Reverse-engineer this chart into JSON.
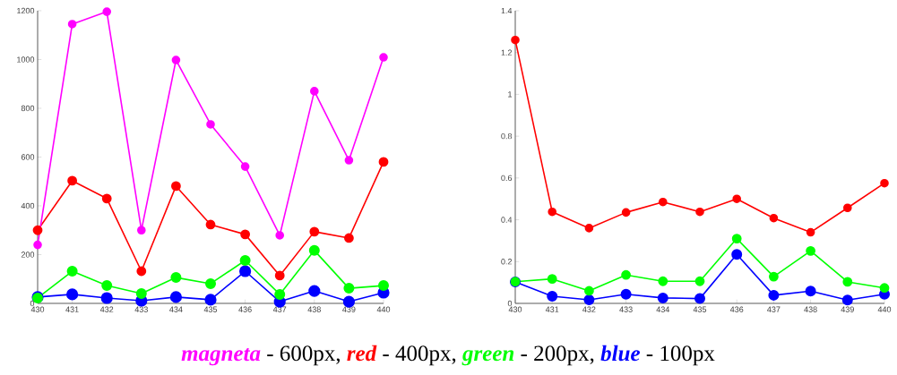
{
  "chart_data": [
    {
      "type": "line",
      "marker": "circle",
      "x": [
        430,
        431,
        432,
        433,
        434,
        435,
        436,
        437,
        438,
        439,
        440
      ],
      "xlim": [
        430,
        440
      ],
      "xticks": [
        430,
        431,
        432,
        433,
        434,
        435,
        436,
        437,
        438,
        439,
        440
      ],
      "ylim": [
        0,
        1200
      ],
      "yticks": [
        0,
        200,
        400,
        600,
        800,
        1000,
        1200
      ],
      "series": [
        {
          "name": "magneta",
          "color": "#ff00ff",
          "values": [
            240,
            1145,
            1196,
            300,
            998,
            734,
            561,
            279,
            870,
            587,
            1009
          ]
        },
        {
          "name": "red",
          "color": "#ff0000",
          "values": [
            300,
            503,
            430,
            132,
            481,
            323,
            283,
            114,
            294,
            268,
            580
          ]
        },
        {
          "name": "green",
          "color": "#00ff00",
          "values": [
            22,
            132,
            73,
            40,
            106,
            81,
            176,
            37,
            217,
            62,
            73
          ]
        },
        {
          "name": "blue",
          "color": "#0000ff",
          "values": [
            26,
            37,
            22,
            11,
            26,
            15,
            132,
            7,
            51,
            7,
            44
          ]
        }
      ],
      "annotations": [
        "- 600px,",
        "- 400px,",
        "- 200px,",
        "- 100px"
      ]
    },
    {
      "type": "line",
      "marker": "circle",
      "x": [
        430,
        431,
        432,
        433,
        434,
        435,
        436,
        437,
        438,
        439,
        440
      ],
      "xlim": [
        430,
        440
      ],
      "xticks": [
        430,
        431,
        432,
        433,
        434,
        435,
        436,
        437,
        438,
        439,
        440
      ],
      "ylim": [
        0,
        1.4
      ],
      "yticks": [
        0,
        0.2,
        0.4,
        0.6,
        0.8,
        1,
        1.2,
        1.4
      ],
      "series": [
        {
          "color": "#ff0000",
          "values": [
            1.26,
            0.438,
            0.36,
            0.435,
            0.485,
            0.438,
            0.5,
            0.408,
            0.34,
            0.457,
            0.575
          ]
        },
        {
          "color": "#00ff00",
          "values": [
            0.104,
            0.117,
            0.06,
            0.136,
            0.106,
            0.106,
            0.31,
            0.128,
            0.251,
            0.103,
            0.074
          ]
        },
        {
          "color": "#0000ff",
          "values": [
            0.103,
            0.034,
            0.017,
            0.044,
            0.026,
            0.023,
            0.234,
            0.039,
            0.059,
            0.016,
            0.044
          ]
        }
      ]
    }
  ]
}
